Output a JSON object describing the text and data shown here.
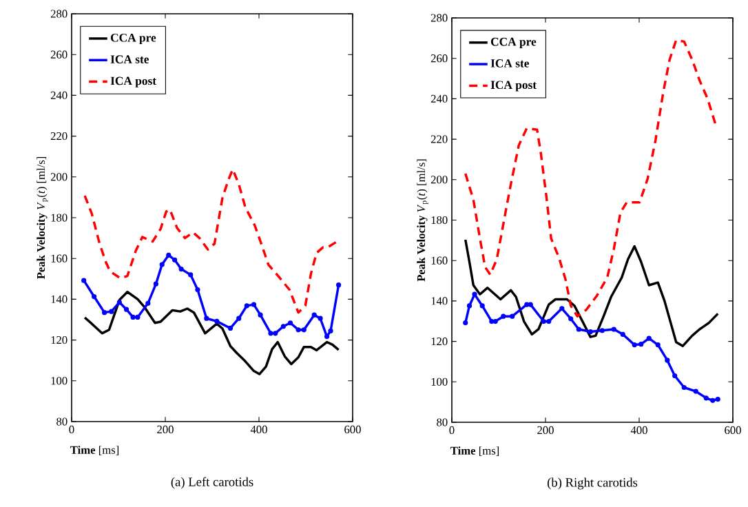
{
  "chart_data": [
    {
      "type": "line",
      "title": "(a)  Left carotids",
      "xlabel": "**Time** [ms]",
      "ylabel": "**Peak Velocity** *V*$_{p}$(*t*) [ml/s]",
      "xlim": [
        0,
        600
      ],
      "ylim": [
        80,
        280
      ],
      "xticks": [
        0,
        200,
        400,
        600
      ],
      "yticks": [
        80,
        100,
        120,
        140,
        160,
        180,
        200,
        220,
        240,
        260,
        280
      ],
      "legend": "top left",
      "series": [
        {
          "name": "CCA pre",
          "color": "#000000",
          "line_style": "solid",
          "x": [
            28,
            43,
            65,
            80,
            102,
            119,
            141,
            156,
            178,
            190,
            215,
            232,
            247,
            261,
            285,
            310,
            322,
            339,
            352,
            369,
            389,
            401,
            415,
            428,
            440,
            455,
            469,
            484,
            496,
            511,
            523,
            545,
            557,
            570
          ],
          "values": [
            131,
            128,
            123.3,
            125,
            139.6,
            143.6,
            140,
            136,
            128.4,
            129,
            134.6,
            134,
            135.4,
            133.5,
            123.3,
            128,
            125.6,
            117,
            113.8,
            110,
            104.8,
            103.3,
            107,
            115.5,
            119,
            112,
            108.2,
            111.5,
            116.6,
            116.6,
            115,
            119,
            117.7,
            115.2
          ]
        },
        {
          "name": "ICA ste",
          "color": "#0000ff",
          "line_style": "solid",
          "marker": "circle",
          "x": [
            26,
            48,
            70,
            85,
            102,
            117,
            131,
            141,
            163,
            180,
            193,
            207,
            220,
            234,
            254,
            269,
            288,
            310,
            339,
            357,
            374,
            389,
            403,
            425,
            435,
            452,
            467,
            484,
            496,
            518,
            531,
            545,
            553,
            570
          ],
          "values": [
            149.2,
            141.3,
            133.5,
            134,
            138.5,
            135,
            131.2,
            131.2,
            138,
            147.5,
            157,
            161.6,
            159.3,
            154.8,
            152,
            144.7,
            130.6,
            129.2,
            125.8,
            130.6,
            136.8,
            137.4,
            132.3,
            123.3,
            123.3,
            126.7,
            128.4,
            125,
            125,
            132.3,
            130.6,
            121.7,
            124.5,
            147
          ]
        },
        {
          "name": "ICA post",
          "color": "#ff0000",
          "line_style": "dashed",
          "x": [
            28,
            43,
            60,
            73,
            82,
            104,
            119,
            137,
            151,
            173,
            190,
            202,
            210,
            225,
            242,
            259,
            273,
            291,
            305,
            322,
            335,
            344,
            357,
            371,
            391,
            405,
            420,
            445,
            465,
            484,
            499,
            511,
            523,
            537,
            547,
            570
          ],
          "values": [
            190.8,
            182,
            167,
            158.3,
            153.7,
            150.3,
            151.4,
            163.8,
            170.5,
            168.3,
            174.5,
            183,
            184,
            175,
            170,
            172.8,
            170,
            164.4,
            167.2,
            189.7,
            198.7,
            203.7,
            196.4,
            185,
            176.2,
            167.2,
            157,
            150.3,
            144.7,
            133.5,
            136.8,
            152.6,
            162.7,
            165.5,
            165.5,
            168.8
          ]
        }
      ]
    },
    {
      "type": "line",
      "title": "(b)  Right carotids",
      "xlabel": "**Time** [ms]",
      "ylabel": "**Peak Velocity** *V*$_{p}$(*t*) [ml/s]",
      "xlim": [
        0,
        600
      ],
      "ylim": [
        80,
        280
      ],
      "xticks": [
        0,
        200,
        400,
        600
      ],
      "yticks": [
        80,
        100,
        120,
        140,
        160,
        180,
        200,
        220,
        240,
        260,
        280
      ],
      "legend": "top left",
      "series": [
        {
          "name": "CCA pre",
          "color": "#000000",
          "line_style": "solid",
          "x": [
            29,
            37.5,
            46,
            60,
            76,
            104,
            126,
            137,
            154,
            171,
            185,
            207,
            221,
            246,
            262,
            279,
            296,
            307,
            324,
            340,
            363,
            376,
            390,
            404,
            421,
            440,
            454,
            479,
            493,
            513,
            529,
            549,
            568
          ],
          "values": [
            170.3,
            159.4,
            147.8,
            143.3,
            146.5,
            140.8,
            145.3,
            142,
            129.9,
            123.5,
            126,
            138.2,
            140.8,
            140.8,
            137.6,
            129.9,
            122.2,
            122.8,
            132.4,
            142,
            151.7,
            160.6,
            167,
            159.4,
            147.8,
            149.1,
            140.1,
            119.6,
            117.7,
            122.8,
            126,
            129.2,
            133.7
          ]
        },
        {
          "name": "ICA ste",
          "color": "#0000ff",
          "line_style": "solid",
          "marker": "circle",
          "x": [
            29,
            37.5,
            48.6,
            65,
            85,
            93,
            110,
            129,
            160,
            168,
            196,
            207,
            235,
            254,
            271,
            296,
            321,
            346,
            365,
            390,
            404,
            421,
            440,
            460,
            476,
            496,
            521,
            543,
            557,
            568
          ],
          "values": [
            129.2,
            137.6,
            143.3,
            137.6,
            129.9,
            129.9,
            132.4,
            132.4,
            138.2,
            138.2,
            129.9,
            129.9,
            136.3,
            131.2,
            126,
            124.8,
            125.4,
            126,
            123.5,
            118.3,
            118.6,
            121.5,
            118.3,
            110.7,
            103,
            97.2,
            95.3,
            92,
            90.8,
            91.4
          ]
        },
        {
          "name": "ICA post",
          "color": "#ff0000",
          "line_style": "dashed",
          "x": [
            29,
            46,
            60,
            71,
            82,
            96,
            112.5,
            126,
            143,
            160,
            182,
            190,
            202,
            212,
            229,
            243,
            254,
            268,
            287,
            310,
            332,
            346,
            360,
            373.5,
            401,
            418,
            435,
            451,
            465,
            479,
            496,
            513,
            529,
            546,
            563
          ],
          "values": [
            203,
            190.1,
            170.9,
            156.8,
            153,
            160.6,
            181.2,
            197.8,
            217,
            225.4,
            224.7,
            213.2,
            191.4,
            170.9,
            161.3,
            150.4,
            137.6,
            132.4,
            135.6,
            142.7,
            151.7,
            165.8,
            183.7,
            188.8,
            188.8,
            200.4,
            219.6,
            242.7,
            259.4,
            269,
            268.3,
            259.4,
            249.1,
            240.1,
            227.3
          ]
        }
      ]
    }
  ]
}
